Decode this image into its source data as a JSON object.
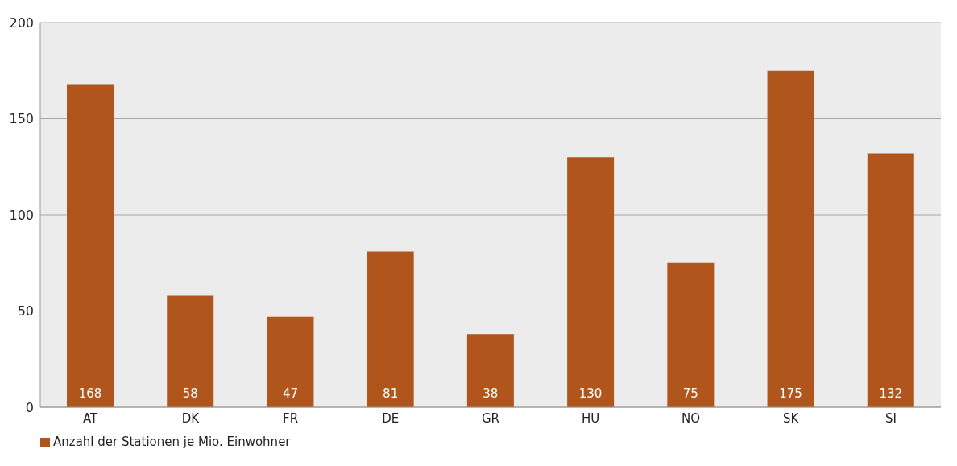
{
  "chart_data": {
    "type": "bar",
    "categories": [
      "AT",
      "DK",
      "FR",
      "DE",
      "GR",
      "HU",
      "NO",
      "SK",
      "SI"
    ],
    "series": [
      {
        "name": "Anzahl der Stationen je Mio. Einwohner",
        "color": "#b0561c",
        "values": [
          168,
          58,
          47,
          81,
          38,
          130,
          75,
          175,
          132
        ]
      }
    ],
    "ylim": [
      0,
      200
    ],
    "yticks": [
      0,
      50,
      100,
      150,
      200
    ],
    "grid": "y",
    "legend": "bottom left",
    "data_labels": true
  }
}
